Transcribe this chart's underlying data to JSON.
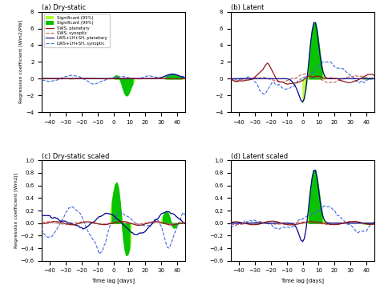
{
  "titles": [
    "(a) Dry-static",
    "(b) Latent",
    "(c) Dry-static scaled",
    "(d) Latent scaled"
  ],
  "ylabel_top": "Regression coefficient [Wm2/PW]",
  "ylabel_bottom": "Regression coefficient [Wm2J]",
  "xlabel": "Time lag [days]",
  "xlim": [
    -45,
    45
  ],
  "xticks": [
    -40,
    -30,
    -20,
    -10,
    0,
    10,
    20,
    30,
    40
  ],
  "ylim_ab": [
    -4,
    8
  ],
  "yticks_ab": [
    -4,
    -2,
    0,
    2,
    4,
    6,
    8
  ],
  "ylim_cd": [
    -0.6,
    1.0
  ],
  "yticks_cd": [
    -0.6,
    -0.4,
    -0.2,
    0.0,
    0.2,
    0.4,
    0.6,
    0.8,
    1.0
  ],
  "colors": {
    "sws_planetary": "#8B1a1a",
    "sws_synoptic": "#CD5C5C",
    "lws_planetary": "#00008B",
    "lws_synoptic": "#4169E1",
    "sig95": "#ADFF2F",
    "sig99": "#00C000"
  },
  "background": "#ffffff"
}
